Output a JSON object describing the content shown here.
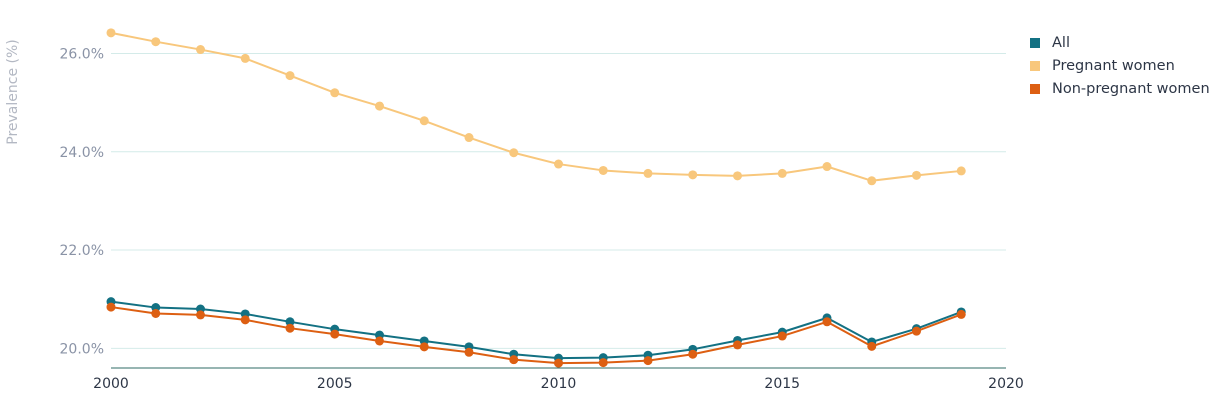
{
  "chart_data": {
    "type": "line",
    "title": "",
    "xlabel": "",
    "ylabel": "Prevalence (%)",
    "x": [
      2000,
      2001,
      2002,
      2003,
      2004,
      2005,
      2006,
      2007,
      2008,
      2009,
      2010,
      2011,
      2012,
      2013,
      2014,
      2015,
      2016,
      2017,
      2018,
      2019
    ],
    "xlim": [
      2000,
      2020
    ],
    "ylim": [
      19.6,
      26.6
    ],
    "x_ticks": [
      2000,
      2005,
      2010,
      2015,
      2020
    ],
    "x_tick_labels": [
      "2000",
      "2005",
      "2010",
      "2015",
      "2020"
    ],
    "y_ticks": [
      20,
      22,
      24,
      26
    ],
    "y_tick_labels": [
      "20.0%",
      "22.0%",
      "24.0%",
      "26.0%"
    ],
    "grid": "horizontal",
    "legend_position": "top-right",
    "series": [
      {
        "name": "All",
        "color": "#137183",
        "values": [
          20.95,
          20.83,
          20.8,
          20.7,
          20.54,
          20.39,
          20.27,
          20.15,
          20.03,
          19.88,
          19.8,
          19.81,
          19.86,
          19.98,
          20.16,
          20.33,
          20.62,
          20.13,
          20.4,
          20.74
        ]
      },
      {
        "name": "Pregnant women",
        "color": "#f8c77c",
        "values": [
          26.42,
          26.24,
          26.08,
          25.9,
          25.55,
          25.2,
          24.93,
          24.63,
          24.29,
          23.98,
          23.75,
          23.62,
          23.56,
          23.53,
          23.51,
          23.56,
          23.7,
          23.41,
          23.52,
          23.61
        ]
      },
      {
        "name": "Non-pregnant women",
        "color": "#dd5f12",
        "values": [
          20.84,
          20.71,
          20.68,
          20.58,
          20.41,
          20.29,
          20.15,
          20.03,
          19.92,
          19.77,
          19.7,
          19.71,
          19.75,
          19.88,
          20.07,
          20.25,
          20.54,
          20.04,
          20.35,
          20.69
        ]
      }
    ]
  }
}
